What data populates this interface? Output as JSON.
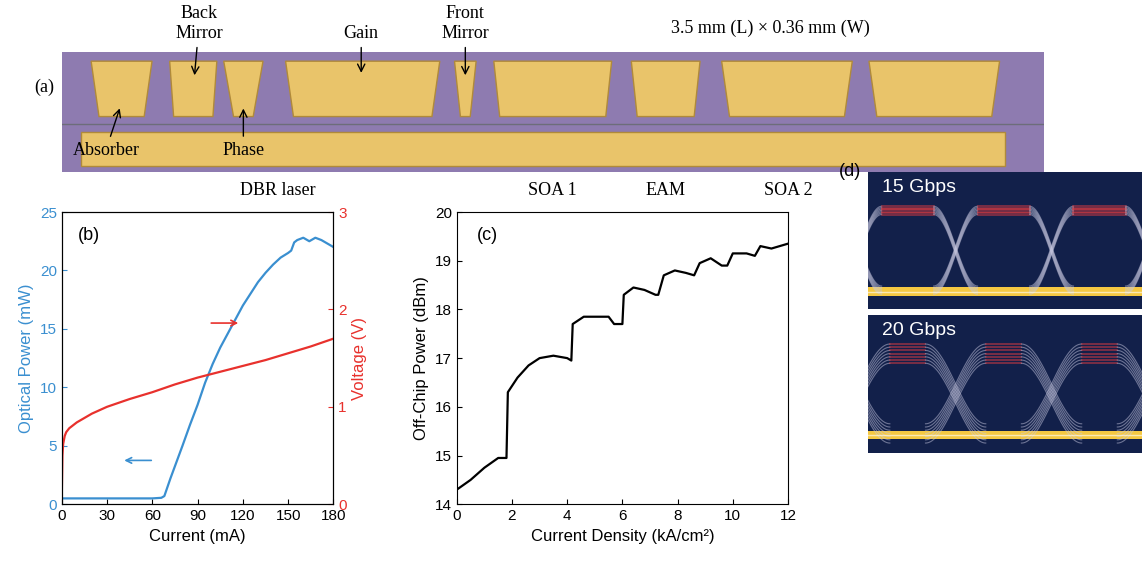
{
  "chip": {
    "panel_label": "(a)",
    "size": "3.5 mm (L) × 0.36 mm (W)",
    "labels": {
      "back_mirror": "Back\nMirror",
      "gain": "Gain",
      "front_mirror": "Front\nMirror",
      "absorber": "Absorber",
      "phase": "Phase",
      "dbr": "DBR laser",
      "soa1": "SOA 1",
      "eam": "EAM",
      "soa2": "SOA 2"
    }
  },
  "chart_data": [
    {
      "type": "line",
      "annotations": [
        "(b)"
      ],
      "x_label": "Current (mA)",
      "y_label": "Optical Power (mW)",
      "y2_label": "Voltage (V)",
      "xlim": [
        0,
        180
      ],
      "xticks": [
        0,
        30,
        60,
        90,
        120,
        150,
        180
      ],
      "ylim": [
        0,
        25
      ],
      "yticks": [
        0,
        5,
        10,
        15,
        20,
        25
      ],
      "y2lim": [
        0,
        3
      ],
      "y2ticks": [
        0,
        1,
        2,
        3
      ],
      "series": [
        {
          "color": "#3a8fd0",
          "axis": "y",
          "x": [
            0,
            10,
            20,
            30,
            40,
            50,
            60,
            66,
            68,
            72,
            76,
            80,
            85,
            90,
            95,
            100,
            105,
            110,
            115,
            120,
            125,
            130,
            135,
            140,
            145,
            150,
            152,
            154,
            156,
            160,
            164,
            168,
            172,
            176,
            180
          ],
          "values": [
            0.5,
            0.5,
            0.5,
            0.5,
            0.5,
            0.5,
            0.5,
            0.55,
            0.7,
            2.2,
            3.6,
            5.0,
            6.8,
            8.5,
            10.4,
            12.0,
            13.4,
            14.6,
            15.8,
            17.0,
            18.0,
            19.0,
            19.8,
            20.5,
            21.1,
            21.5,
            21.7,
            22.4,
            22.6,
            22.8,
            22.5,
            22.8,
            22.6,
            22.3,
            22.0
          ]
        },
        {
          "color": "#e8312d",
          "axis": "y2",
          "x": [
            0,
            0.5,
            1,
            2,
            3,
            5,
            10,
            20,
            30,
            45,
            60,
            75,
            90,
            105,
            120,
            135,
            150,
            165,
            180
          ],
          "values": [
            0,
            0.5,
            0.62,
            0.7,
            0.74,
            0.78,
            0.84,
            0.93,
            1.0,
            1.08,
            1.15,
            1.23,
            1.3,
            1.36,
            1.42,
            1.48,
            1.55,
            1.62,
            1.7
          ]
        }
      ]
    },
    {
      "type": "line",
      "annotations": [
        "(c)"
      ],
      "x_label": "Current Density (kA/cm²)",
      "y_label": "Off-Chip Power (dBm)",
      "xlim": [
        0,
        12
      ],
      "xticks": [
        0,
        2,
        4,
        6,
        8,
        10,
        12
      ],
      "ylim": [
        14,
        20
      ],
      "yticks": [
        14,
        15,
        16,
        17,
        18,
        19,
        20
      ],
      "series": [
        {
          "color": "#000000",
          "axis": "y",
          "x": [
            0,
            0.5,
            1.0,
            1.5,
            1.8,
            1.85,
            2.2,
            2.6,
            3.0,
            3.5,
            4.0,
            4.15,
            4.2,
            4.6,
            5.0,
            5.5,
            5.7,
            6.0,
            6.05,
            6.4,
            6.8,
            7.2,
            7.3,
            7.5,
            7.9,
            8.3,
            8.6,
            8.8,
            9.2,
            9.6,
            9.8,
            10.0,
            10.5,
            10.8,
            11.0,
            11.4,
            11.7,
            12.0
          ],
          "values": [
            14.3,
            14.5,
            14.75,
            14.95,
            14.95,
            16.3,
            16.6,
            16.85,
            17.0,
            17.05,
            17.0,
            16.95,
            17.7,
            17.85,
            17.85,
            17.85,
            17.7,
            17.7,
            18.3,
            18.45,
            18.4,
            18.3,
            18.3,
            18.7,
            18.8,
            18.75,
            18.7,
            18.95,
            19.05,
            18.9,
            18.9,
            19.15,
            19.15,
            19.1,
            19.3,
            19.25,
            19.3,
            19.35
          ]
        }
      ]
    }
  ],
  "eyes": {
    "panel_label": "(d)",
    "rates": [
      "15 Gbps",
      "20 Gbps"
    ]
  }
}
